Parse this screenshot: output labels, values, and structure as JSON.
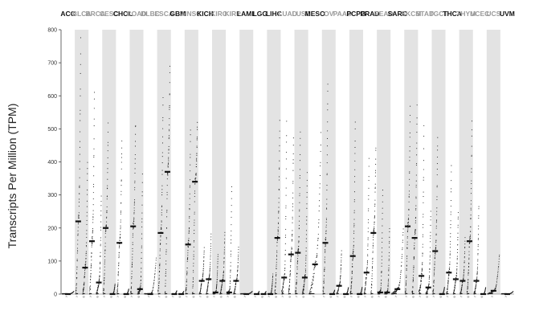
{
  "chart_data": {
    "type": "scatter",
    "title": "",
    "ylabel": "Transcripts Per Million (TPM)",
    "ylim": [
      0,
      800
    ],
    "yticks": [
      0,
      100,
      200,
      300,
      400,
      500,
      600,
      700,
      800
    ],
    "grid": "alternating gray column bands behind each cancer type",
    "legend": "none",
    "colors": {
      "points": "#222222",
      "median": "#111111",
      "band": "#e3e3e3",
      "label_strong": "#111111",
      "label_faint": "#9a9a9a"
    },
    "categories": [
      {
        "name": "ACC",
        "style": "strong",
        "groups": [
          {
            "median": 0,
            "max": 8
          }
        ]
      },
      {
        "name": "BLCA",
        "style": "faint",
        "groups": [
          {
            "median": 220,
            "max": 770
          },
          {
            "median": 80,
            "max": 400
          }
        ]
      },
      {
        "name": "BRCA",
        "style": "faint",
        "groups": [
          {
            "median": 160,
            "max": 620
          },
          {
            "median": 35,
            "max": 300
          }
        ]
      },
      {
        "name": "CESC",
        "style": "faint",
        "groups": [
          {
            "median": 200,
            "max": 510
          },
          {
            "median": 0,
            "max": 30
          }
        ]
      },
      {
        "name": "CHOL",
        "style": "strong",
        "groups": [
          {
            "median": 155,
            "max": 470
          },
          {
            "median": 0,
            "max": 15
          }
        ]
      },
      {
        "name": "COAD",
        "style": "faint",
        "groups": [
          {
            "median": 205,
            "max": 520
          },
          {
            "median": 15,
            "max": 360
          }
        ]
      },
      {
        "name": "DLBC",
        "style": "faint",
        "groups": [
          {
            "median": 0,
            "max": 110
          }
        ]
      },
      {
        "name": "ESCA",
        "style": "faint",
        "groups": [
          {
            "median": 185,
            "max": 600
          },
          {
            "median": 370,
            "max": 680
          }
        ]
      },
      {
        "name": "GBM",
        "style": "strong",
        "groups": [
          {
            "median": 0,
            "max": 10
          },
          {
            "median": 0,
            "max": 8
          }
        ]
      },
      {
        "name": "HNSC",
        "style": "faint",
        "groups": [
          {
            "median": 150,
            "max": 500
          },
          {
            "median": 340,
            "max": 520
          }
        ]
      },
      {
        "name": "KICH",
        "style": "strong",
        "groups": [
          {
            "median": 40,
            "max": 140
          },
          {
            "median": 45,
            "max": 180
          }
        ]
      },
      {
        "name": "KIRC",
        "style": "faint",
        "groups": [
          {
            "median": 5,
            "max": 120
          },
          {
            "median": 40,
            "max": 190
          }
        ]
      },
      {
        "name": "KIRP",
        "style": "faint",
        "groups": [
          {
            "median": 5,
            "max": 330
          },
          {
            "median": 40,
            "max": 140
          }
        ]
      },
      {
        "name": "LAML",
        "style": "strong",
        "groups": [
          {
            "median": 0,
            "max": 8
          }
        ]
      },
      {
        "name": "LGG",
        "style": "strong",
        "groups": [
          {
            "median": 0,
            "max": 8
          },
          {
            "median": 0,
            "max": 8
          }
        ]
      },
      {
        "name": "LIHC",
        "style": "strong",
        "groups": [
          {
            "median": 0,
            "max": 60
          },
          {
            "median": 170,
            "max": 520
          }
        ]
      },
      {
        "name": "LUAD",
        "style": "faint",
        "groups": [
          {
            "median": 50,
            "max": 520
          },
          {
            "median": 120,
            "max": 480
          }
        ]
      },
      {
        "name": "LUSC",
        "style": "faint",
        "groups": [
          {
            "median": 125,
            "max": 500
          },
          {
            "median": 50,
            "max": 370
          }
        ]
      },
      {
        "name": "MESO",
        "style": "strong",
        "groups": [
          {
            "median": 90,
            "max": 480
          }
        ]
      },
      {
        "name": "OV",
        "style": "faint",
        "groups": [
          {
            "median": 155,
            "max": 640
          },
          {
            "median": 0,
            "max": 12
          }
        ]
      },
      {
        "name": "PAAD",
        "style": "faint",
        "groups": [
          {
            "median": 25,
            "max": 130
          },
          {
            "median": 0,
            "max": 20
          }
        ]
      },
      {
        "name": "PCPG",
        "style": "strong",
        "groups": [
          {
            "median": 115,
            "max": 520
          },
          {
            "median": 0,
            "max": 20
          }
        ]
      },
      {
        "name": "PRAD",
        "style": "strong",
        "groups": [
          {
            "median": 65,
            "max": 410
          },
          {
            "median": 185,
            "max": 450
          }
        ]
      },
      {
        "name": "READ",
        "style": "faint",
        "groups": [
          {
            "median": 5,
            "max": 320
          },
          {
            "median": 5,
            "max": 200
          }
        ]
      },
      {
        "name": "SARC",
        "style": "strong",
        "groups": [
          {
            "median": 15,
            "max": 200
          }
        ]
      },
      {
        "name": "SKCM",
        "style": "faint",
        "groups": [
          {
            "median": 205,
            "max": 560
          },
          {
            "median": 170,
            "max": 570
          }
        ]
      },
      {
        "name": "STAD",
        "style": "faint",
        "groups": [
          {
            "median": 55,
            "max": 500
          },
          {
            "median": 20,
            "max": 250
          }
        ]
      },
      {
        "name": "TGCT",
        "style": "faint",
        "groups": [
          {
            "median": 130,
            "max": 480
          },
          {
            "median": 0,
            "max": 20
          }
        ]
      },
      {
        "name": "THCA",
        "style": "strong",
        "groups": [
          {
            "median": 65,
            "max": 390
          },
          {
            "median": 45,
            "max": 250
          }
        ]
      },
      {
        "name": "THYM",
        "style": "faint",
        "groups": [
          {
            "median": 40,
            "max": 170
          },
          {
            "median": 160,
            "max": 520
          }
        ]
      },
      {
        "name": "UCEC",
        "style": "faint",
        "groups": [
          {
            "median": 40,
            "max": 270
          },
          {
            "median": 0,
            "max": 20
          }
        ]
      },
      {
        "name": "UCS",
        "style": "faint",
        "groups": [
          {
            "median": 10,
            "max": 120
          }
        ]
      },
      {
        "name": "UVM",
        "style": "strong",
        "groups": [
          {
            "median": 0,
            "max": 8
          }
        ]
      }
    ]
  }
}
